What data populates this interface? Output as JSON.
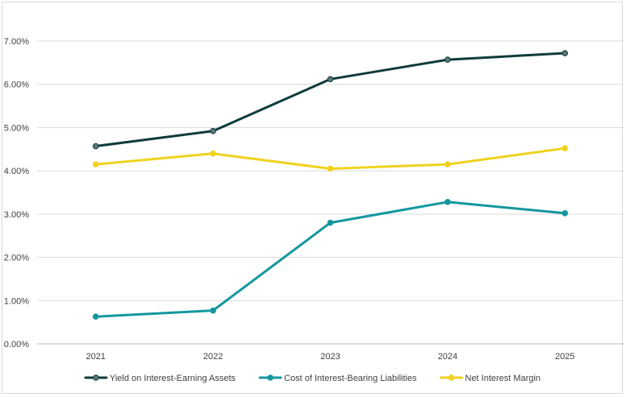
{
  "chart_data": {
    "type": "line",
    "title": "",
    "xlabel": "",
    "ylabel": "",
    "categories": [
      "2021",
      "2022",
      "2023",
      "2024",
      "2025"
    ],
    "ylim": [
      0,
      7
    ],
    "y_ticks": [
      0,
      1,
      2,
      3,
      4,
      5,
      6,
      7
    ],
    "y_tick_labels": [
      "0.00%",
      "1.00%",
      "2.00%",
      "3.00%",
      "4.00%",
      "5.00%",
      "6.00%",
      "7.00%"
    ],
    "grid": "horizontal",
    "legend_position": "bottom",
    "series": [
      {
        "name": "Yield on Interest-Earning Assets",
        "values": [
          4.57,
          4.92,
          6.12,
          6.57,
          6.72
        ],
        "color": "#0f3b3c",
        "marker_fill": "#5f7576"
      },
      {
        "name": "Cost of Interest-Bearing Liabilities",
        "values": [
          0.63,
          0.77,
          2.8,
          3.28,
          3.02
        ],
        "color": "#14979e",
        "marker_fill": "#14979e"
      },
      {
        "name": "Net Interest Margin",
        "values": [
          4.15,
          4.4,
          4.05,
          4.15,
          4.52
        ],
        "color": "#f0d21e",
        "marker_fill": "#f0d21e"
      }
    ]
  }
}
